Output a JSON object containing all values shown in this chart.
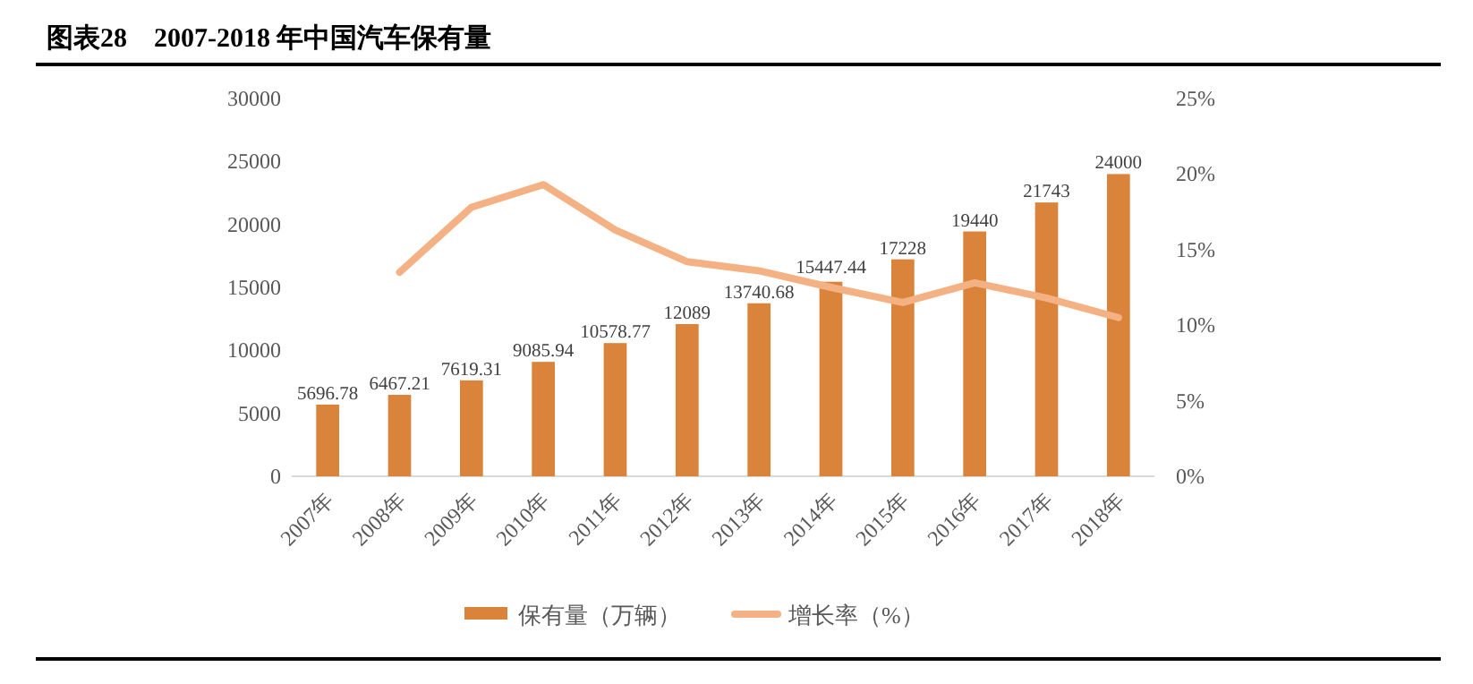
{
  "chart_data": {
    "type": "bar",
    "title": "图表28　2007-2018 年中国汽车保有量",
    "categories": [
      "2007年",
      "2008年",
      "2009年",
      "2010年",
      "2011年",
      "2012年",
      "2013年",
      "2014年",
      "2015年",
      "2016年",
      "2017年",
      "2018年"
    ],
    "series": [
      {
        "name": "保有量（万辆）",
        "color": "#d9843a",
        "values": [
          5696.78,
          6467.21,
          7619.31,
          9085.94,
          10578.77,
          12089,
          13740.68,
          15447.44,
          17228,
          19440,
          21743,
          24000
        ],
        "value_labels": [
          "5696.78",
          "6467.21",
          "7619.31",
          "9085.94",
          "10578.77",
          "12089",
          "13740.68",
          "15447.44",
          "17228",
          "19440",
          "21743",
          "24000"
        ]
      },
      {
        "name": "增长率（%）",
        "type": "line",
        "axis": "y2",
        "color": "#f4b183",
        "values": [
          null,
          13.5,
          17.8,
          19.3,
          16.3,
          14.2,
          13.6,
          12.5,
          11.5,
          12.8,
          11.8,
          10.5
        ]
      }
    ],
    "ylim": [
      0,
      30000
    ],
    "yticks": [
      0,
      5000,
      10000,
      15000,
      20000,
      25000,
      30000
    ],
    "y2lim": [
      0,
      25
    ],
    "y2ticks": [
      {
        "value": 0,
        "label": "0%"
      },
      {
        "value": 5,
        "label": "5%"
      },
      {
        "value": 10,
        "label": "10%"
      },
      {
        "value": 15,
        "label": "15%"
      },
      {
        "value": 20,
        "label": "20%"
      },
      {
        "value": 25,
        "label": "25%"
      }
    ],
    "grid": false,
    "legend": "bottom",
    "marker": "none",
    "line_style": "solid"
  }
}
